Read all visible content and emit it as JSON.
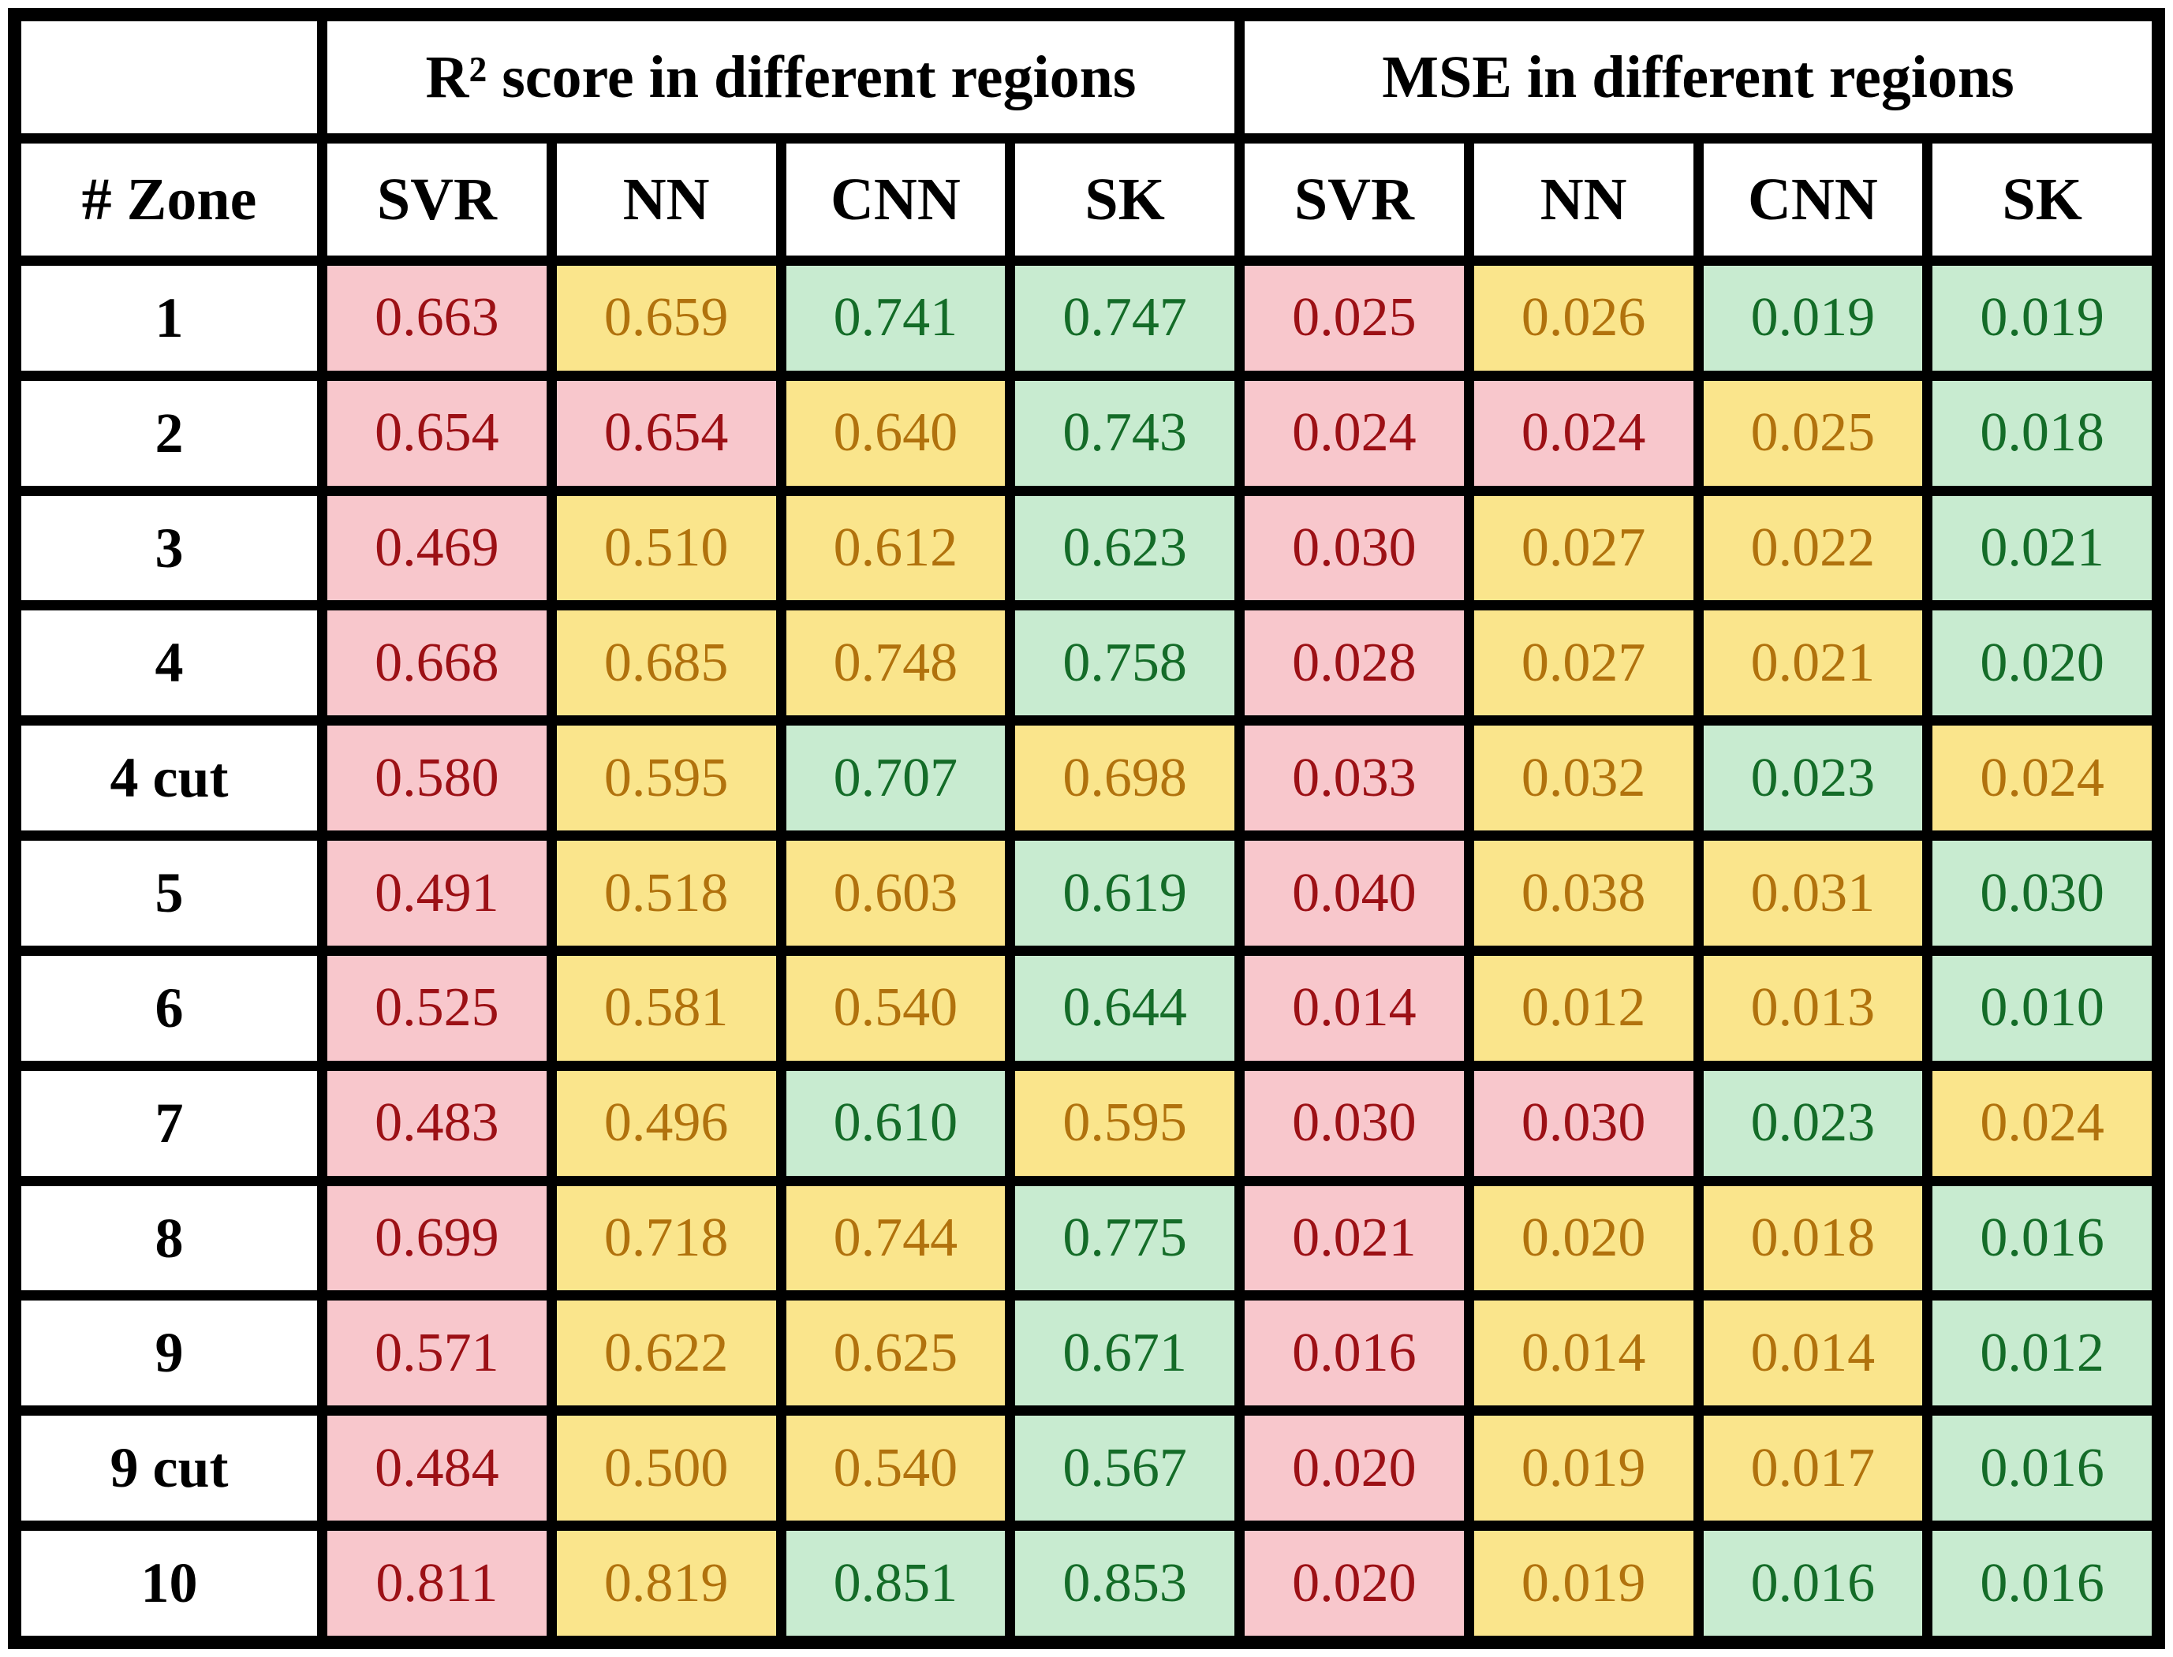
{
  "table": {
    "group_headers": [
      {
        "label": "",
        "span": 1
      },
      {
        "label": "R² score in different regions",
        "span": 4
      },
      {
        "label": "MSE in different regions",
        "span": 4
      }
    ],
    "column_headers": [
      "# Zone",
      "SVR",
      "NN",
      "CNN",
      "SK",
      "SVR",
      "NN",
      "CNN",
      "SK"
    ],
    "rows": [
      {
        "zone": "1",
        "cells": [
          {
            "v": "0.663",
            "c": "r"
          },
          {
            "v": "0.659",
            "c": "y"
          },
          {
            "v": "0.741",
            "c": "g"
          },
          {
            "v": "0.747",
            "c": "g"
          },
          {
            "v": "0.025",
            "c": "r"
          },
          {
            "v": "0.026",
            "c": "y"
          },
          {
            "v": "0.019",
            "c": "g"
          },
          {
            "v": "0.019",
            "c": "g"
          }
        ]
      },
      {
        "zone": "2",
        "cells": [
          {
            "v": "0.654",
            "c": "r"
          },
          {
            "v": "0.654",
            "c": "r"
          },
          {
            "v": "0.640",
            "c": "y"
          },
          {
            "v": "0.743",
            "c": "g"
          },
          {
            "v": "0.024",
            "c": "r"
          },
          {
            "v": "0.024",
            "c": "r"
          },
          {
            "v": "0.025",
            "c": "y"
          },
          {
            "v": "0.018",
            "c": "g"
          }
        ]
      },
      {
        "zone": "3",
        "cells": [
          {
            "v": "0.469",
            "c": "r"
          },
          {
            "v": "0.510",
            "c": "y"
          },
          {
            "v": "0.612",
            "c": "y"
          },
          {
            "v": "0.623",
            "c": "g"
          },
          {
            "v": "0.030",
            "c": "r"
          },
          {
            "v": "0.027",
            "c": "y"
          },
          {
            "v": "0.022",
            "c": "y"
          },
          {
            "v": "0.021",
            "c": "g"
          }
        ]
      },
      {
        "zone": "4",
        "cells": [
          {
            "v": "0.668",
            "c": "r"
          },
          {
            "v": "0.685",
            "c": "y"
          },
          {
            "v": "0.748",
            "c": "y"
          },
          {
            "v": "0.758",
            "c": "g"
          },
          {
            "v": "0.028",
            "c": "r"
          },
          {
            "v": "0.027",
            "c": "y"
          },
          {
            "v": "0.021",
            "c": "y"
          },
          {
            "v": "0.020",
            "c": "g"
          }
        ]
      },
      {
        "zone": "4 cut",
        "cells": [
          {
            "v": "0.580",
            "c": "r"
          },
          {
            "v": "0.595",
            "c": "y"
          },
          {
            "v": "0.707",
            "c": "g"
          },
          {
            "v": "0.698",
            "c": "y"
          },
          {
            "v": "0.033",
            "c": "r"
          },
          {
            "v": "0.032",
            "c": "y"
          },
          {
            "v": "0.023",
            "c": "g"
          },
          {
            "v": "0.024",
            "c": "y"
          }
        ]
      },
      {
        "zone": "5",
        "cells": [
          {
            "v": "0.491",
            "c": "r"
          },
          {
            "v": "0.518",
            "c": "y"
          },
          {
            "v": "0.603",
            "c": "y"
          },
          {
            "v": "0.619",
            "c": "g"
          },
          {
            "v": "0.040",
            "c": "r"
          },
          {
            "v": "0.038",
            "c": "y"
          },
          {
            "v": "0.031",
            "c": "y"
          },
          {
            "v": "0.030",
            "c": "g"
          }
        ]
      },
      {
        "zone": "6",
        "cells": [
          {
            "v": "0.525",
            "c": "r"
          },
          {
            "v": "0.581",
            "c": "y"
          },
          {
            "v": "0.540",
            "c": "y"
          },
          {
            "v": "0.644",
            "c": "g"
          },
          {
            "v": "0.014",
            "c": "r"
          },
          {
            "v": "0.012",
            "c": "y"
          },
          {
            "v": "0.013",
            "c": "y"
          },
          {
            "v": "0.010",
            "c": "g"
          }
        ]
      },
      {
        "zone": "7",
        "cells": [
          {
            "v": "0.483",
            "c": "r"
          },
          {
            "v": "0.496",
            "c": "y"
          },
          {
            "v": "0.610",
            "c": "g"
          },
          {
            "v": "0.595",
            "c": "y"
          },
          {
            "v": "0.030",
            "c": "r"
          },
          {
            "v": "0.030",
            "c": "r"
          },
          {
            "v": "0.023",
            "c": "g"
          },
          {
            "v": "0.024",
            "c": "y"
          }
        ]
      },
      {
        "zone": "8",
        "cells": [
          {
            "v": "0.699",
            "c": "r"
          },
          {
            "v": "0.718",
            "c": "y"
          },
          {
            "v": "0.744",
            "c": "y"
          },
          {
            "v": "0.775",
            "c": "g"
          },
          {
            "v": "0.021",
            "c": "r"
          },
          {
            "v": "0.020",
            "c": "y"
          },
          {
            "v": "0.018",
            "c": "y"
          },
          {
            "v": "0.016",
            "c": "g"
          }
        ]
      },
      {
        "zone": "9",
        "cells": [
          {
            "v": "0.571",
            "c": "r"
          },
          {
            "v": "0.622",
            "c": "y"
          },
          {
            "v": "0.625",
            "c": "y"
          },
          {
            "v": "0.671",
            "c": "g"
          },
          {
            "v": "0.016",
            "c": "r"
          },
          {
            "v": "0.014",
            "c": "y"
          },
          {
            "v": "0.014",
            "c": "y"
          },
          {
            "v": "0.012",
            "c": "g"
          }
        ]
      },
      {
        "zone": "9 cut",
        "cells": [
          {
            "v": "0.484",
            "c": "r"
          },
          {
            "v": "0.500",
            "c": "y"
          },
          {
            "v": "0.540",
            "c": "y"
          },
          {
            "v": "0.567",
            "c": "g"
          },
          {
            "v": "0.020",
            "c": "r"
          },
          {
            "v": "0.019",
            "c": "y"
          },
          {
            "v": "0.017",
            "c": "y"
          },
          {
            "v": "0.016",
            "c": "g"
          }
        ]
      },
      {
        "zone": "10",
        "cells": [
          {
            "v": "0.811",
            "c": "r"
          },
          {
            "v": "0.819",
            "c": "y"
          },
          {
            "v": "0.851",
            "c": "g"
          },
          {
            "v": "0.853",
            "c": "g"
          },
          {
            "v": "0.020",
            "c": "r"
          },
          {
            "v": "0.019",
            "c": "y"
          },
          {
            "v": "0.016",
            "c": "g"
          },
          {
            "v": "0.016",
            "c": "g"
          }
        ]
      }
    ]
  },
  "colors": {
    "bg_red": "#F8C7CC",
    "bg_yellow": "#FAE58C",
    "bg_green": "#C8EBD0",
    "text_red": "#9C1015",
    "text_yellow": "#B1720D",
    "text_green": "#146C28",
    "grid_line": "#000000",
    "header_text": "#000000"
  },
  "chart_data": {
    "type": "table",
    "title": "",
    "row_label_header": "# Zone",
    "groups": [
      "R² score in different regions",
      "MSE in different regions"
    ],
    "columns_per_group": [
      "SVR",
      "NN",
      "CNN",
      "SK"
    ],
    "zones": [
      "1",
      "2",
      "3",
      "4",
      "4 cut",
      "5",
      "6",
      "7",
      "8",
      "9",
      "9 cut",
      "10"
    ],
    "r2_scores": {
      "SVR": [
        0.663,
        0.654,
        0.469,
        0.668,
        0.58,
        0.491,
        0.525,
        0.483,
        0.699,
        0.571,
        0.484,
        0.811
      ],
      "NN": [
        0.659,
        0.654,
        0.51,
        0.685,
        0.595,
        0.518,
        0.581,
        0.496,
        0.718,
        0.622,
        0.5,
        0.819
      ],
      "CNN": [
        0.741,
        0.64,
        0.612,
        0.748,
        0.707,
        0.603,
        0.54,
        0.61,
        0.744,
        0.625,
        0.54,
        0.851
      ],
      "SK": [
        0.747,
        0.743,
        0.623,
        0.758,
        0.698,
        0.619,
        0.644,
        0.595,
        0.775,
        0.671,
        0.567,
        0.853
      ]
    },
    "mse": {
      "SVR": [
        0.025,
        0.024,
        0.03,
        0.028,
        0.033,
        0.04,
        0.014,
        0.03,
        0.021,
        0.016,
        0.02,
        0.02
      ],
      "NN": [
        0.026,
        0.024,
        0.027,
        0.027,
        0.032,
        0.038,
        0.012,
        0.03,
        0.02,
        0.014,
        0.019,
        0.019
      ],
      "CNN": [
        0.019,
        0.025,
        0.022,
        0.021,
        0.023,
        0.031,
        0.013,
        0.023,
        0.018,
        0.014,
        0.017,
        0.016
      ],
      "SK": [
        0.019,
        0.018,
        0.021,
        0.02,
        0.024,
        0.03,
        0.01,
        0.024,
        0.016,
        0.012,
        0.016,
        0.016
      ]
    }
  }
}
